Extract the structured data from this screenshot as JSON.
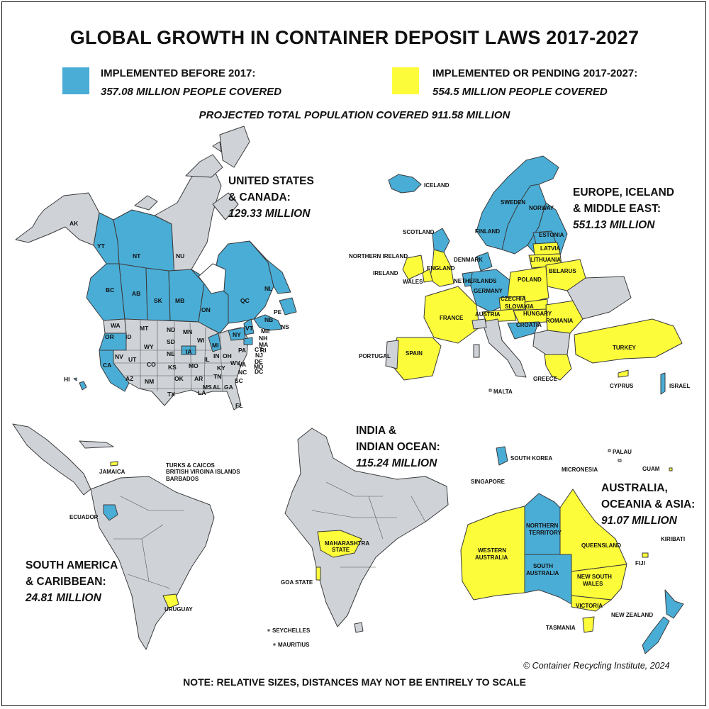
{
  "title": "GLOBAL GROWTH IN CONTAINER DEPOSIT LAWS 2017-2027",
  "colors": {
    "before_2017": "#4aadd6",
    "pending_2017_2027": "#fcfc3a",
    "no_law": "#cfd3d8",
    "border": "#3a3a3a"
  },
  "legend": {
    "before": {
      "line1": "IMPLEMENTED BEFORE 2017:",
      "line2": "357.08 MILLION PEOPLE COVERED"
    },
    "pending": {
      "line1": "IMPLEMENTED OR PENDING 2017-2027:",
      "line2": "554.5 MILLION PEOPLE COVERED"
    }
  },
  "projected_total": "PROJECTED TOTAL POPULATION COVERED 911.58 MILLION",
  "regions": {
    "north_america": {
      "line1": "UNITED STATES",
      "line2": "& CANADA:",
      "value": "129.33 MILLION"
    },
    "europe": {
      "line1": "EUROPE, ICELAND",
      "line2": "& MIDDLE EAST:",
      "value": "551.13 MILLION"
    },
    "india": {
      "line1": "INDIA &",
      "line2": "INDIAN OCEAN:",
      "value": "115.24 MILLION"
    },
    "south_america": {
      "line1": "SOUTH AMERICA",
      "line2": "& CARIBBEAN:",
      "value": "24.81 MILLION"
    },
    "australia": {
      "line1": "AUSTRALIA,",
      "line2": "OCEANIA & ASIA:",
      "value": "91.07 MILLION"
    }
  },
  "labels": {
    "na": [
      "AK",
      "YT",
      "NT",
      "NU",
      "BC",
      "AB",
      "SK",
      "MB",
      "ON",
      "QC",
      "NL",
      "PE",
      "NB",
      "NS",
      "HI",
      "WA",
      "MT",
      "ND",
      "MN",
      "WI",
      "MI",
      "NY",
      "VT",
      "NH",
      "ME",
      "MA",
      "RI",
      "CT",
      "NJ",
      "DE",
      "MD",
      "DC",
      "OR",
      "ID",
      "WY",
      "SD",
      "IA",
      "NE",
      "NV",
      "UT",
      "CO",
      "KS",
      "MO",
      "IL",
      "IN",
      "OH",
      "PA",
      "WV",
      "VA",
      "KY",
      "NC",
      "CA",
      "AZ",
      "NM",
      "OK",
      "AR",
      "TN",
      "SC",
      "TX",
      "MS",
      "AL",
      "GA",
      "LA",
      "FL"
    ],
    "europe": [
      "ICELAND",
      "SWEDEN",
      "NORWAY",
      "FINLAND",
      "ESTONIA",
      "SCOTLAND",
      "LATVIA",
      "NORTHERN IRELAND",
      "DENMARK",
      "LITHUANIA",
      "ENGLAND",
      "IRELAND",
      "BELARUS",
      "NETHERLANDS",
      "WALES",
      "POLAND",
      "GERMANY",
      "CZECHIA",
      "SLOVAKIA",
      "FRANCE",
      "AUSTRIA",
      "HUNGARY",
      "ROMANIA",
      "CROATIA",
      "TURKEY",
      "PORTUGAL",
      "SPAIN",
      "GREECE",
      "CYPRUS",
      "ISRAEL",
      "MALTA"
    ],
    "south_america": [
      "JAMAICA",
      "TURKS & CAICOS",
      "BRITISH VIRGINA ISLANDS",
      "BARBADOS",
      "ECUADOR",
      "URUGUAY"
    ],
    "india": [
      "MAHARASHTRA",
      "STATE",
      "GOA STATE",
      "SEYCHELLES",
      "MAURITIUS"
    ],
    "asia": [
      "SOUTH KOREA",
      "PALAU",
      "MICRONESIA",
      "GUAM",
      "SINGAPORE",
      "NORTHERN",
      "TERRITORY",
      "QUEENSLAND",
      "WESTERN",
      "AUSTRALIA",
      "SOUTH",
      "AUSTRALIA",
      "NEW SOUTH",
      "WALES",
      "VICTORIA",
      "KIRIBATI",
      "FIJI",
      "NEW ZEALAND",
      "TASMANIA"
    ]
  },
  "credit": "© Container Recycling Institute, 2024",
  "note": "NOTE: RELATIVE SIZES, DISTANCES MAY NOT BE ENTIRELY TO SCALE"
}
